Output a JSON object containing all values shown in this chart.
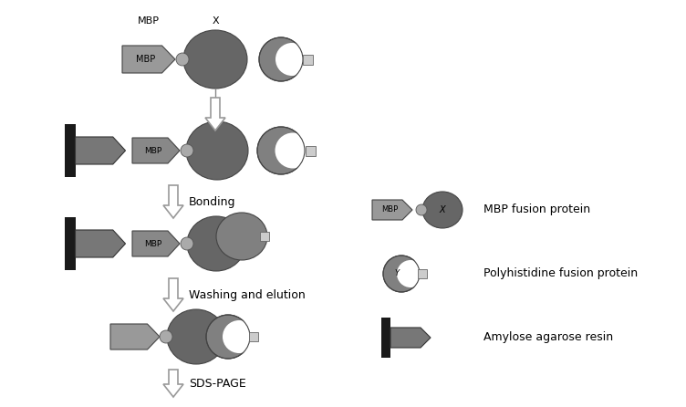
{
  "bg_color": "#ffffff",
  "mbp_arrow_color": "#888888",
  "mbp_arrow_color2": "#999999",
  "circle_dark": "#666666",
  "circle_mid": "#777777",
  "crescent_color": "#777777",
  "resin_arrow_color": "#777777",
  "resin_bar_color": "#1a1a1a",
  "small_circle_color": "#aaaaaa",
  "small_square_color": "#cccccc",
  "gel_band_color": "#111111",
  "arrow_edge_color": "#999999",
  "legend_labels": [
    "MBP fusion protein",
    "Polyhistidine fusion protein",
    "Amylose agarose resin"
  ],
  "step_labels": [
    "Bonding",
    "Washing and elution",
    "SDS-PAGE"
  ]
}
